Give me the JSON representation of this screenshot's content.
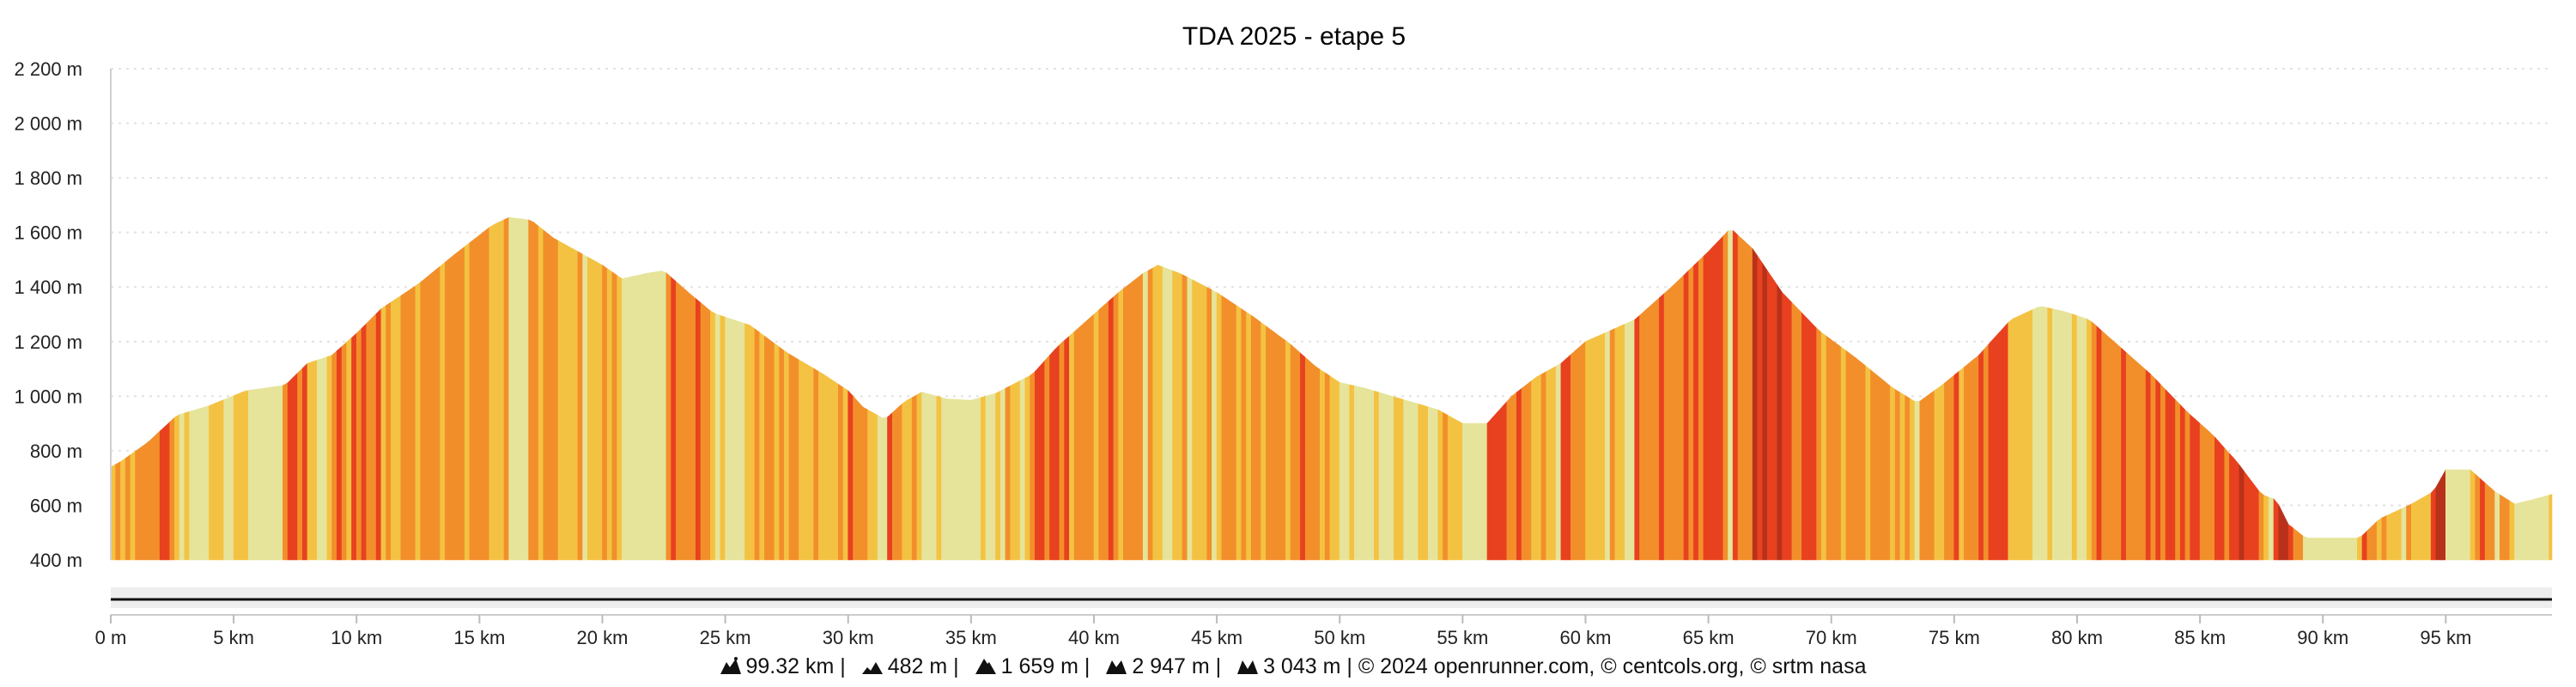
{
  "chart_data": {
    "type": "area",
    "title": "TDA 2025 - etape 5",
    "xlabel": "",
    "ylabel": "",
    "xlim": [
      0,
      99.32
    ],
    "ylim": [
      400,
      2200
    ],
    "y_ticks": [
      2200,
      2000,
      1800,
      1600,
      1400,
      1200,
      1000,
      800,
      600,
      400
    ],
    "y_tick_labels": [
      "2 200 m",
      "2 000 m",
      "1 800 m",
      "1 600 m",
      "1 400 m",
      "1 200 m",
      "1 000 m",
      "800 m",
      "600 m",
      "400 m"
    ],
    "x_ticks": [
      0,
      5,
      10,
      15,
      20,
      25,
      30,
      35,
      40,
      45,
      50,
      55,
      60,
      65,
      70,
      75,
      80,
      85,
      90,
      95
    ],
    "x_tick_labels": [
      "0 m",
      "5 km",
      "10 km",
      "15 km",
      "20 km",
      "25 km",
      "30 km",
      "35 km",
      "40 km",
      "45 km",
      "50 km",
      "55 km",
      "60 km",
      "65 km",
      "70 km",
      "75 km",
      "80 km",
      "85 km",
      "90 km",
      "95 km"
    ],
    "grid": true,
    "colors": {
      "flat": "#e6e49a",
      "moderate": "#f4c242",
      "steep": "#f28f2a",
      "very_steep": "#e8411f",
      "extreme": "#b8311a"
    },
    "series": [
      {
        "x": [
          0,
          0.4,
          1.5,
          2.7,
          4.0,
          5.5,
          7.1,
          8.0,
          9.0,
          10.0,
          11.0,
          12.5,
          14.0,
          15.5,
          16.2,
          17.1,
          18.0,
          19.0,
          20.0,
          20.8,
          21.8,
          22.5,
          23.5,
          24.5,
          26.0,
          27.5,
          29.0,
          30.0,
          30.6,
          31.5,
          32.3,
          33.0,
          34.0,
          35.0,
          36.0,
          37.5,
          38.5,
          40.0,
          41.0,
          42.0,
          42.6,
          43.5,
          45.0,
          46.5,
          48.0,
          49.0,
          50.0,
          51.0,
          52.5,
          54.0,
          55.0,
          56.0,
          57.0,
          58.0,
          59.0,
          60.0,
          61.0,
          62.0,
          63.5,
          65.0,
          65.9,
          66.8,
          68.0,
          69.5,
          71.0,
          72.5,
          73.5,
          74.5,
          76.0,
          77.3,
          78.5,
          79.5,
          80.5,
          81.5,
          83.0,
          84.5,
          85.5,
          86.5,
          87.5,
          88.1,
          88.6,
          89.3,
          91.5,
          92.3,
          93.5,
          94.5,
          95.0,
          96.0,
          97.0,
          97.8,
          98.5,
          99.32
        ],
        "y": [
          740,
          760,
          830,
          930,
          965,
          1020,
          1040,
          1120,
          1150,
          1230,
          1320,
          1410,
          1520,
          1625,
          1655,
          1645,
          1580,
          1530,
          1480,
          1430,
          1450,
          1460,
          1380,
          1305,
          1260,
          1160,
          1080,
          1020,
          960,
          915,
          980,
          1015,
          990,
          985,
          1010,
          1080,
          1180,
          1300,
          1380,
          1450,
          1480,
          1450,
          1380,
          1290,
          1190,
          1110,
          1050,
          1030,
          990,
          950,
          900,
          900,
          1000,
          1070,
          1120,
          1200,
          1240,
          1280,
          1400,
          1530,
          1615,
          1540,
          1380,
          1240,
          1140,
          1030,
          975,
          1040,
          1150,
          1280,
          1330,
          1310,
          1280,
          1200,
          1080,
          940,
          860,
          760,
          640,
          620,
          530,
          480,
          480,
          550,
          600,
          650,
          730,
          730,
          650,
          605,
          620,
          640
        ]
      }
    ]
  },
  "footer": {
    "distance": "99.32 km",
    "min_altitude": "482 m",
    "max_altitude": "1 659 m",
    "elevation_gain": "2 947 m",
    "elevation_loss": "3 043 m",
    "credits": "© 2024 openrunner.com, © centcols.org, © srtm nasa"
  }
}
